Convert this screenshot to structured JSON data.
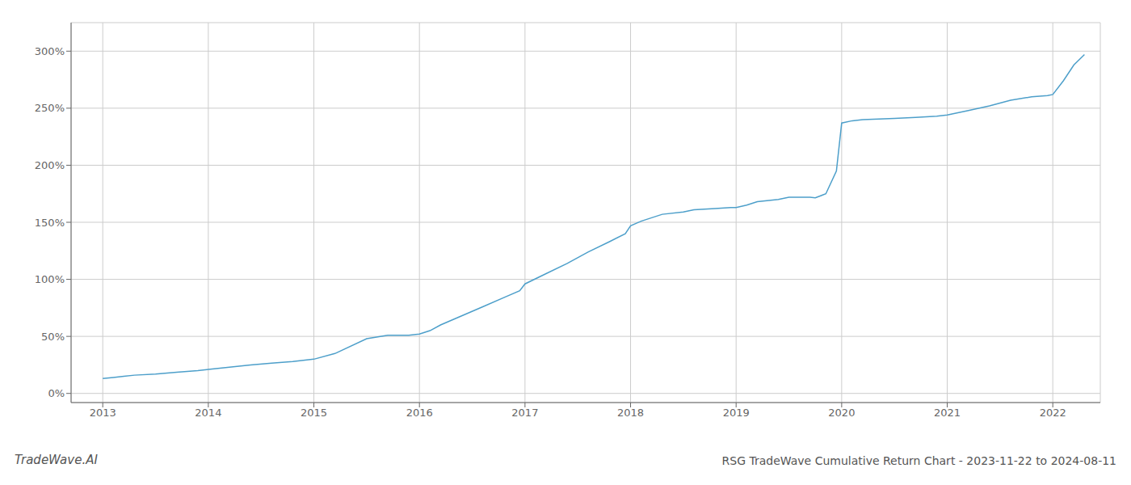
{
  "chart_data": {
    "type": "line",
    "title": "RSG TradeWave Cumulative Return Chart - 2023-11-22 to 2024-08-11",
    "annotations": [
      "TradeWave.AI"
    ],
    "color": "#4d9fca",
    "grid": true,
    "xlim": [
      2012.7,
      2022.45
    ],
    "xticks": [
      2013,
      2014,
      2015,
      2016,
      2017,
      2018,
      2019,
      2020,
      2021,
      2022
    ],
    "ylim": [
      -8,
      325
    ],
    "yticks": [
      {
        "value": 0,
        "label": "0%"
      },
      {
        "value": 50,
        "label": "50%"
      },
      {
        "value": 100,
        "label": "100%"
      },
      {
        "value": 150,
        "label": "150%"
      },
      {
        "value": 200,
        "label": "200%"
      },
      {
        "value": 250,
        "label": "250%"
      },
      {
        "value": 300,
        "label": "300%"
      }
    ],
    "x": [
      2013.0,
      2013.1,
      2013.2,
      2013.3,
      2013.5,
      2013.7,
      2013.9,
      2014.0,
      2014.2,
      2014.4,
      2014.6,
      2014.8,
      2014.95,
      2015.0,
      2015.2,
      2015.5,
      2015.7,
      2015.9,
      2016.0,
      2016.1,
      2016.2,
      2016.4,
      2016.6,
      2016.8,
      2016.95,
      2017.0,
      2017.2,
      2017.4,
      2017.6,
      2017.8,
      2017.95,
      2018.0,
      2018.1,
      2018.2,
      2018.3,
      2018.5,
      2018.6,
      2018.8,
      2018.95,
      2019.0,
      2019.1,
      2019.2,
      2019.4,
      2019.5,
      2019.6,
      2019.7,
      2019.75,
      2019.85,
      2019.95,
      2020.0,
      2020.1,
      2020.2,
      2020.5,
      2020.7,
      2020.9,
      2021.0,
      2021.2,
      2021.4,
      2021.6,
      2021.8,
      2021.95,
      2022.0,
      2022.1,
      2022.2,
      2022.3
    ],
    "values": [
      13,
      14,
      15,
      16,
      17,
      18.5,
      20,
      21,
      23,
      25,
      26.5,
      28,
      29.5,
      30,
      35,
      48,
      51,
      51,
      52,
      55,
      60,
      68,
      76,
      84,
      90,
      96,
      105,
      114,
      124,
      133,
      140,
      147,
      151,
      154,
      157,
      159,
      161,
      162,
      163,
      163,
      165,
      168,
      170,
      172,
      172,
      172,
      171.5,
      175,
      195,
      237,
      239,
      240,
      241,
      242,
      243,
      244,
      248,
      252,
      257,
      260,
      261,
      262,
      274,
      288,
      297
    ]
  }
}
